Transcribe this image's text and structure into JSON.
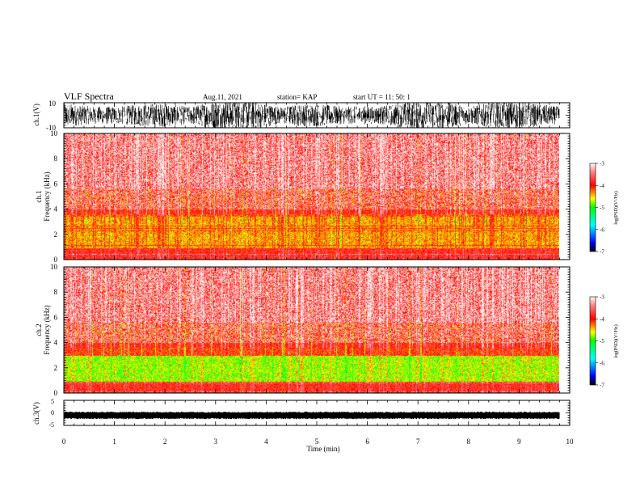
{
  "header": {
    "title": "VLF Spectra",
    "date": "Aug.11, 2021",
    "station": "station= KAP",
    "start_ut": "start  UT  =   11: 50: 1"
  },
  "colorbar": {
    "label": "log(PSD)(V²/Hz)",
    "ticks": [
      "-3",
      "-4",
      "-5",
      "-6",
      "-7"
    ],
    "range": [
      -7,
      -3
    ]
  },
  "chart_data": [
    {
      "type": "line",
      "name": "ch1-waveform",
      "ylabel": "ch.1(V)",
      "ylim": [
        -10,
        10
      ],
      "yticks": [
        "10",
        "-10"
      ],
      "xlim": [
        0,
        10
      ]
    },
    {
      "type": "heatmap",
      "name": "ch1-spectrogram",
      "ylabel": "ch.1\nFrequency (kHz)",
      "ylim": [
        0,
        10
      ],
      "yticks": [
        "10",
        "8",
        "6",
        "4",
        "2",
        "0"
      ],
      "xlim": [
        0,
        10
      ],
      "data_end_min": 9.8
    },
    {
      "type": "heatmap",
      "name": "ch2-spectrogram",
      "ylabel": "ch.2\nFrequency (kHz)",
      "ylim": [
        0,
        10
      ],
      "yticks": [
        "10",
        "8",
        "6",
        "4",
        "2",
        "0"
      ],
      "xlim": [
        0,
        10
      ],
      "data_end_min": 9.8
    },
    {
      "type": "line",
      "name": "ch3-waveform",
      "ylabel": "ch.3(V)",
      "ylim": [
        -5,
        5
      ],
      "yticks": [
        "5",
        "0",
        "-5"
      ],
      "xlim": [
        0,
        10
      ],
      "xlabel": "Time (min)",
      "xticks": [
        "0",
        "1",
        "2",
        "3",
        "4",
        "5",
        "6",
        "7",
        "8",
        "9",
        "10"
      ]
    }
  ]
}
